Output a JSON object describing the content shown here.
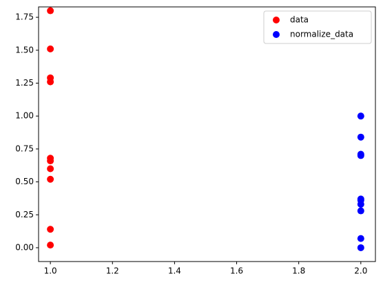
{
  "chart_data": {
    "type": "scatter",
    "series": [
      {
        "name": "data",
        "color": "red",
        "x": [
          1,
          1,
          1,
          1,
          1,
          1,
          1,
          1,
          1,
          1
        ],
        "values": [
          1.8,
          1.51,
          1.29,
          1.26,
          0.68,
          0.66,
          0.6,
          0.52,
          0.14,
          0.02
        ]
      },
      {
        "name": "normalize_data",
        "color": "blue",
        "x": [
          2,
          2,
          2,
          2,
          2,
          2,
          2,
          2,
          2,
          2
        ],
        "values": [
          1.0,
          0.84,
          0.71,
          0.7,
          0.37,
          0.36,
          0.33,
          0.28,
          0.07,
          0.0
        ]
      }
    ],
    "xlim": [
      0.962,
      2.047
    ],
    "xticks": [
      {
        "value": 1,
        "label": "1.0"
      },
      {
        "value": 1.2,
        "label": "1.2"
      },
      {
        "value": 1.4,
        "label": "1.4"
      },
      {
        "value": 1.6,
        "label": "1.6"
      },
      {
        "value": 1.8,
        "label": "1.8"
      },
      {
        "value": 2,
        "label": "2.0"
      }
    ],
    "ylim": [
      -0.105,
      1.829
    ],
    "yticks": [
      {
        "value": 0,
        "label": "0.00"
      },
      {
        "value": 0.25,
        "label": "0.25"
      },
      {
        "value": 0.5,
        "label": "0.50"
      },
      {
        "value": 0.75,
        "label": "0.75"
      },
      {
        "value": 1,
        "label": "1.00"
      },
      {
        "value": 1.25,
        "label": "1.25"
      },
      {
        "value": 1.5,
        "label": "1.50"
      },
      {
        "value": 1.75,
        "label": "1.75"
      }
    ],
    "legend": "upper right"
  }
}
